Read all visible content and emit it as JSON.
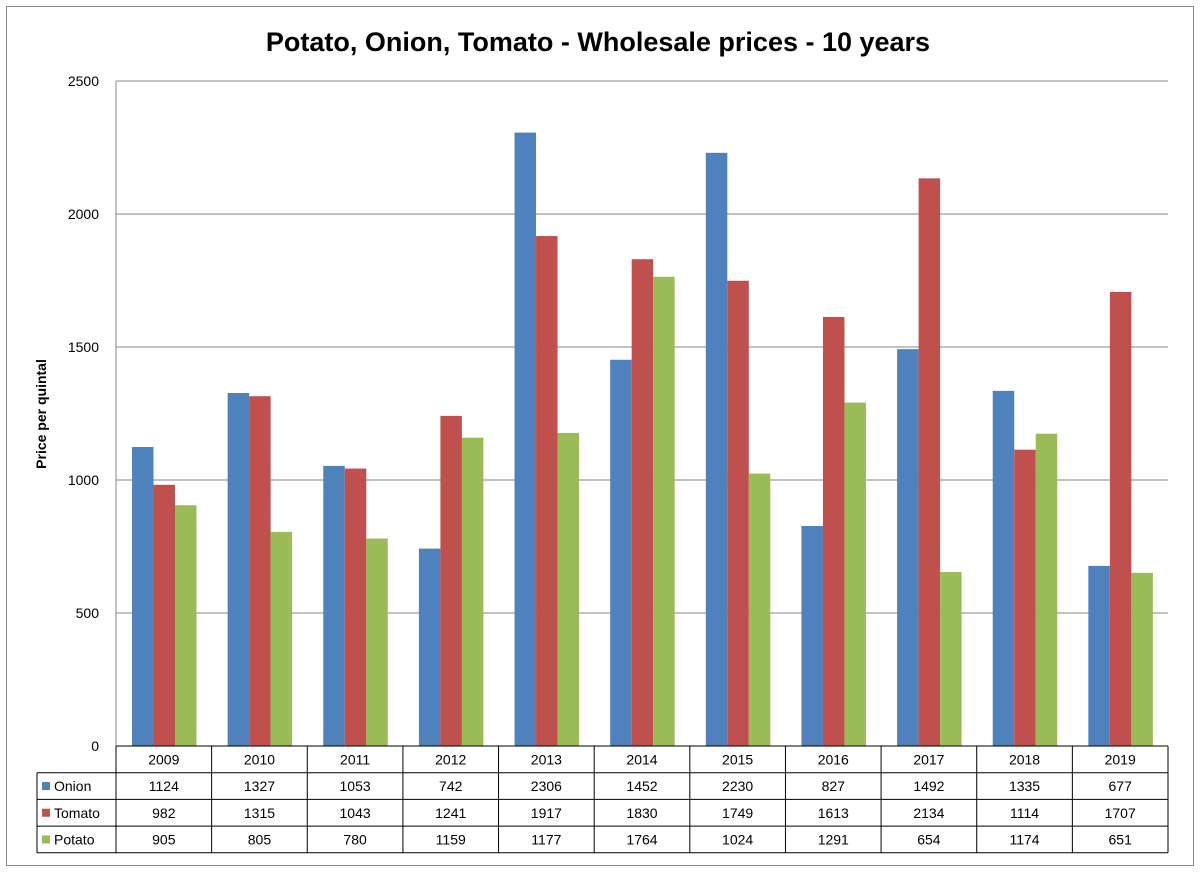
{
  "chart_data": {
    "type": "bar",
    "title": "Potato, Onion, Tomato - Wholesale prices - 10 years",
    "xlabel": "",
    "ylabel": "Price per quintal",
    "ylim": [
      0,
      2500
    ],
    "yticks": [
      "0",
      "500",
      "1000",
      "1500",
      "2000",
      "2500"
    ],
    "grid": true,
    "legend": "data-table",
    "categories": [
      "2009",
      "2010",
      "2011",
      "2012",
      "2013",
      "2014",
      "2015",
      "2016",
      "2017",
      "2018",
      "2019"
    ],
    "series": [
      {
        "name": "Onion",
        "color": "#4f81bd",
        "values": [
          1124,
          1327,
          1053,
          742,
          2306,
          1452,
          2230,
          827,
          1492,
          1335,
          677
        ]
      },
      {
        "name": "Tomato",
        "color": "#c0504d",
        "values": [
          982,
          1315,
          1043,
          1241,
          1917,
          1830,
          1749,
          1613,
          2134,
          1114,
          1707
        ]
      },
      {
        "name": "Potato",
        "color": "#9bbb59",
        "values": [
          905,
          805,
          780,
          1159,
          1177,
          1764,
          1024,
          1291,
          654,
          1174,
          651
        ]
      }
    ]
  }
}
